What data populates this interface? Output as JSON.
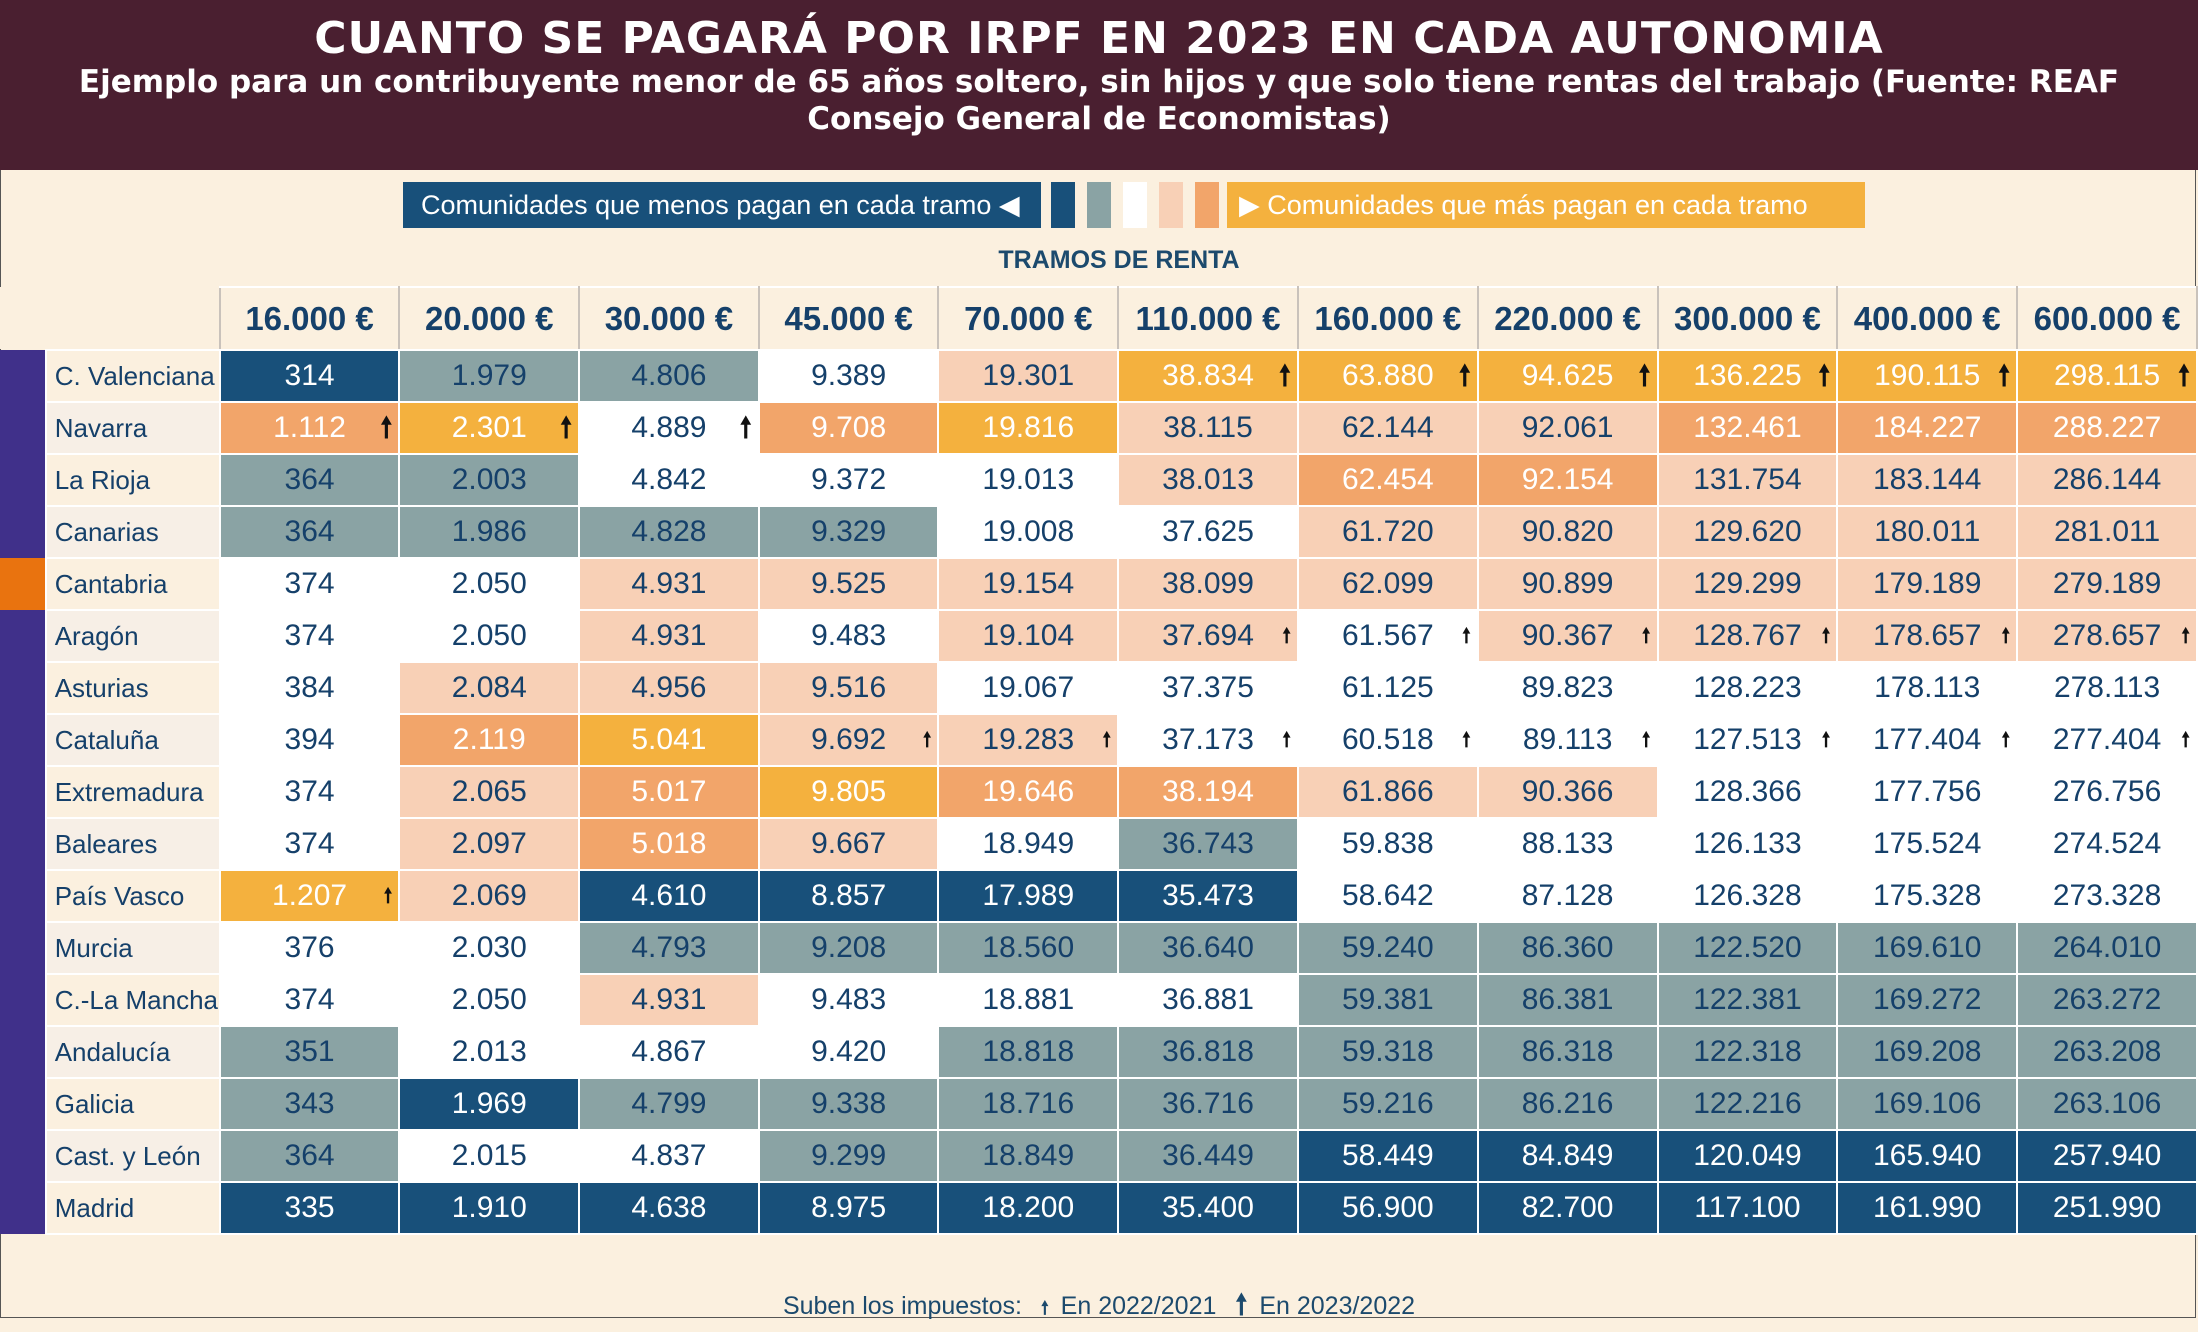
{
  "title": "CUANTO SE PAGARÁ POR IRPF EN 2023 EN CADA AUTONOMIA",
  "subtitle": "Ejemplo para un contribuyente menor de 65 años soltero, sin hijos y que solo tiene rentas del trabajo (Fuente: REAF Consejo General de Economistas)",
  "legend": {
    "less_label": "Comunidades que menos pagan en cada tramo",
    "more_label": "Comunidades que más pagan en cada tramo",
    "less_arrow": "◀",
    "more_arrow": "▶",
    "swatches": [
      "#18507a",
      "#8aa3a4",
      "#ffffff",
      "#f8d0b6",
      "#f2a56a"
    ]
  },
  "palette": {
    "D": {
      "bg": "#18507a",
      "fg": "#ffffff"
    },
    "G": {
      "bg": "#8aa3a4",
      "fg": "#15406a"
    },
    "W": {
      "bg": "#ffffff",
      "fg": "#15406a"
    },
    "P": {
      "bg": "#f8d0b6",
      "fg": "#15406a"
    },
    "O": {
      "bg": "#f2a56a",
      "fg": "#ffffff"
    },
    "Y": {
      "bg": "#f4b13e",
      "fg": "#ffffff"
    }
  },
  "highlight_row": "Cantabria",
  "chart_data": {
    "type": "table",
    "title": "CUANTO SE PAGARÁ POR IRPF EN 2023 EN CADA AUTONOMIA",
    "column_group_label": "TRAMOS DE RENTA",
    "columns": [
      "16.000 €",
      "20.000 €",
      "30.000 €",
      "45.000 €",
      "70.000 €",
      "110.000 €",
      "160.000 €",
      "220.000 €",
      "300.000 €",
      "400.000 €",
      "600.000 €"
    ],
    "rows": [
      {
        "name": "C. Valenciana",
        "values": [
          "314",
          "1.979",
          "4.806",
          "9.389",
          "19.301",
          "38.834",
          "63.880",
          "94.625",
          "136.225",
          "190.115",
          "298.115"
        ],
        "colors": "DGGWPYYYYYY",
        "arrows": ".....BBBBBB"
      },
      {
        "name": "Navarra",
        "values": [
          "1.112",
          "2.301",
          "4.889",
          "9.708",
          "19.816",
          "38.115",
          "62.144",
          "92.061",
          "132.461",
          "184.227",
          "288.227"
        ],
        "colors": "OYWOYPPPOOO",
        "arrows": "BBB........"
      },
      {
        "name": "La Rioja",
        "values": [
          "364",
          "2.003",
          "4.842",
          "9.372",
          "19.013",
          "38.013",
          "62.454",
          "92.154",
          "131.754",
          "183.144",
          "286.144"
        ],
        "colors": "GGWWWPOOPPP",
        "arrows": "..........."
      },
      {
        "name": "Canarias",
        "values": [
          "364",
          "1.986",
          "4.828",
          "9.329",
          "19.008",
          "37.625",
          "61.720",
          "90.820",
          "129.620",
          "180.011",
          "281.011"
        ],
        "colors": "GGGGWWPPPPP",
        "arrows": "..........."
      },
      {
        "name": "Cantabria",
        "values": [
          "374",
          "2.050",
          "4.931",
          "9.525",
          "19.154",
          "38.099",
          "62.099",
          "90.899",
          "129.299",
          "179.189",
          "279.189"
        ],
        "colors": "WWPPPPPPPPP",
        "arrows": "..........."
      },
      {
        "name": "Aragón",
        "values": [
          "374",
          "2.050",
          "4.931",
          "9.483",
          "19.104",
          "37.694",
          "61.567",
          "90.367",
          "128.767",
          "178.657",
          "278.657"
        ],
        "colors": "WWPWPPWPPPP",
        "arrows": ".....ssssss"
      },
      {
        "name": "Asturias",
        "values": [
          "384",
          "2.084",
          "4.956",
          "9.516",
          "19.067",
          "37.375",
          "61.125",
          "89.823",
          "128.223",
          "178.113",
          "278.113"
        ],
        "colors": "WPPPWWWWWWW",
        "arrows": "..........."
      },
      {
        "name": "Cataluña",
        "values": [
          "394",
          "2.119",
          "5.041",
          "9.692",
          "19.283",
          "37.173",
          "60.518",
          "89.113",
          "127.513",
          "177.404",
          "277.404"
        ],
        "colors": "WOYPPWWWWWW",
        "arrows": "...ssssssss"
      },
      {
        "name": "Extremadura",
        "values": [
          "374",
          "2.065",
          "5.017",
          "9.805",
          "19.646",
          "38.194",
          "61.866",
          "90.366",
          "128.366",
          "177.756",
          "276.756"
        ],
        "colors": "WPOYOOPPWWW",
        "arrows": "..........."
      },
      {
        "name": "Baleares",
        "values": [
          "374",
          "2.097",
          "5.018",
          "9.667",
          "18.949",
          "36.743",
          "59.838",
          "88.133",
          "126.133",
          "175.524",
          "274.524"
        ],
        "colors": "WPOPWGWWWWW",
        "arrows": "..........."
      },
      {
        "name": "País Vasco",
        "values": [
          "1.207",
          "2.069",
          "4.610",
          "8.857",
          "17.989",
          "35.473",
          "58.642",
          "87.128",
          "126.328",
          "175.328",
          "273.328"
        ],
        "colors": "YPDDDDWWWWW",
        "arrows": "s.........."
      },
      {
        "name": "Murcia",
        "values": [
          "376",
          "2.030",
          "4.793",
          "9.208",
          "18.560",
          "36.640",
          "59.240",
          "86.360",
          "122.520",
          "169.610",
          "264.010"
        ],
        "colors": "WWGGGGGGGGG",
        "arrows": "..........."
      },
      {
        "name": "C.-La Mancha",
        "values": [
          "374",
          "2.050",
          "4.931",
          "9.483",
          "18.881",
          "36.881",
          "59.381",
          "86.381",
          "122.381",
          "169.272",
          "263.272"
        ],
        "colors": "WWPWWWGGGGG",
        "arrows": "..........."
      },
      {
        "name": "Andalucía",
        "values": [
          "351",
          "2.013",
          "4.867",
          "9.420",
          "18.818",
          "36.818",
          "59.318",
          "86.318",
          "122.318",
          "169.208",
          "263.208"
        ],
        "colors": "GWWWGGGGGGG",
        "arrows": "..........."
      },
      {
        "name": "Galicia",
        "values": [
          "343",
          "1.969",
          "4.799",
          "9.338",
          "18.716",
          "36.716",
          "59.216",
          "86.216",
          "122.216",
          "169.106",
          "263.106"
        ],
        "colors": "GDGGGGGGGGG",
        "arrows": "..........."
      },
      {
        "name": "Cast. y León",
        "values": [
          "364",
          "2.015",
          "4.837",
          "9.299",
          "18.849",
          "36.449",
          "58.449",
          "84.849",
          "120.049",
          "165.940",
          "257.940"
        ],
        "colors": "GWWGGGDDDDD",
        "arrows": "..........."
      },
      {
        "name": "Madrid",
        "values": [
          "335",
          "1.910",
          "4.638",
          "8.975",
          "18.200",
          "35.400",
          "56.900",
          "82.700",
          "117.100",
          "161.990",
          "251.990"
        ],
        "colors": "DDDDDDDDDDD",
        "arrows": "..........."
      }
    ]
  },
  "footer": {
    "label": "Suben los impuestos:",
    "small_arrow": "🠕",
    "big_arrow": "🠕",
    "item1": "En 2022/2021",
    "item2": "En 2023/2022"
  }
}
